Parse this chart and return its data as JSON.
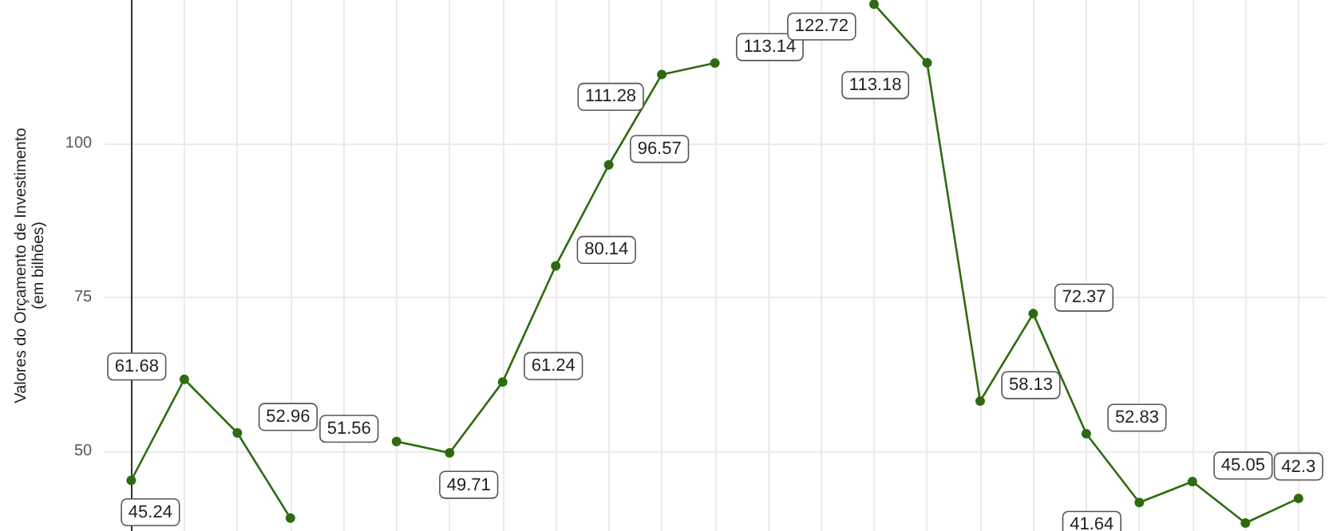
{
  "chart_data": {
    "type": "line",
    "ylabel": "Valores do Orçamento de Investimento\n(em bilhões)",
    "categories": [
      null,
      null,
      null,
      null,
      null,
      null,
      null,
      null,
      null,
      null,
      null,
      null,
      null,
      null,
      null,
      null,
      null,
      null,
      null,
      null,
      null,
      null,
      null
    ],
    "series": [
      {
        "color": "#2e6b10",
        "values": [
          45.24,
          61.68,
          52.96,
          39.1,
          null,
          51.56,
          49.71,
          61.24,
          80.14,
          96.57,
          111.28,
          113.14,
          null,
          null,
          122.72,
          113.18,
          58.13,
          72.37,
          52.83,
          41.64,
          45.05,
          38.3,
          42.3
        ],
        "value_labels": [
          "45.24",
          "61.68",
          "52.96",
          null,
          null,
          "51.56",
          "49.71",
          "61.24",
          "80.14",
          "96.57",
          "111.28",
          "113.14",
          null,
          null,
          "122.72",
          "113.18",
          "58.13",
          "72.37",
          "52.83",
          "41.64",
          "45.05",
          null,
          "42.3"
        ]
      }
    ],
    "ylim": [
      37,
      123.4
    ],
    "yticks": [
      50,
      75,
      100
    ],
    "grid": true,
    "marker": "circle",
    "line_style": "solid",
    "tick_labels": "y"
  }
}
